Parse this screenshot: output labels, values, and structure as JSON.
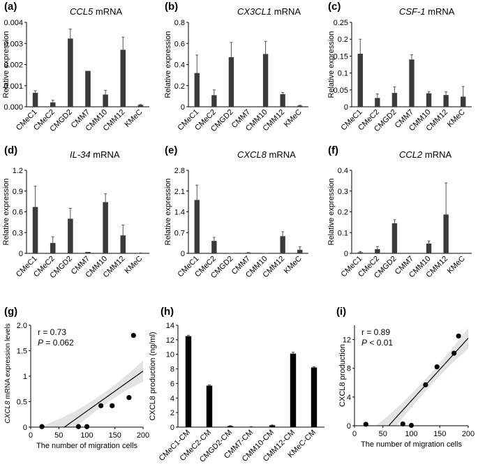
{
  "chart_data": [
    {
      "panel": "(a)",
      "type": "bar",
      "title_gene": "CCL5",
      "title_suffix": " mRNA",
      "ylabel": "Relative expression",
      "categories": [
        "CMeC1",
        "CMeC2",
        "CMGD2",
        "CMM7",
        "CMM10",
        "CMM12",
        "KMeC"
      ],
      "values": [
        0.00066,
        0.00021,
        0.00323,
        0.0017,
        0.00058,
        0.0027,
        9e-05
      ],
      "errors": [
        0.0001,
        0.0001,
        0.00045,
        0.0,
        0.0002,
        0.0006,
        2e-05
      ],
      "ylim": [
        0,
        0.004
      ],
      "yticks": [
        "0.000",
        "0.001",
        "0.002",
        "0.003",
        "0.004"
      ]
    },
    {
      "panel": "(b)",
      "type": "bar",
      "title_gene": "CX3CL1",
      "title_suffix": " mRNA",
      "ylabel": "Relative expression",
      "categories": [
        "CMeC1",
        "CMeC2",
        "CMGD2",
        "CMM7",
        "CMM10",
        "CMM12",
        "KMeC"
      ],
      "values": [
        0.32,
        0.11,
        0.47,
        0.0,
        0.5,
        0.12,
        0.01
      ],
      "errors": [
        0.17,
        0.05,
        0.14,
        0.0,
        0.12,
        0.015,
        0.005
      ],
      "ylim": [
        0,
        0.8
      ],
      "yticks": [
        "0",
        "0.2",
        "0.4",
        "0.6",
        "0.8"
      ]
    },
    {
      "panel": "(c)",
      "type": "bar",
      "title_gene": "CSF-1",
      "title_suffix": " mRNA",
      "ylabel": "Relative expression",
      "categories": [
        "CMeC1",
        "CMeC2",
        "CMGD2",
        "CMM7",
        "CMM10",
        "CMM12",
        "KMeC"
      ],
      "values": [
        0.157,
        0.026,
        0.041,
        0.14,
        0.04,
        0.035,
        0.03
      ],
      "errors": [
        0.043,
        0.012,
        0.018,
        0.014,
        0.005,
        0.009,
        0.03
      ],
      "ylim": [
        0,
        0.25
      ],
      "yticks": [
        "0",
        "0.05",
        "0.1",
        "0.15",
        "0.2",
        "0.25"
      ]
    },
    {
      "panel": "(d)",
      "type": "bar",
      "title_gene": "IL-34",
      "title_suffix": " mRNA",
      "ylabel": "Relative expression",
      "categories": [
        "CMeC1",
        "CMeC2",
        "CMGD2",
        "CMM7",
        "CMM10",
        "CMM12",
        "KMeC"
      ],
      "values": [
        0.67,
        0.15,
        0.5,
        0.02,
        0.74,
        0.26,
        0.005
      ],
      "errors": [
        0.3,
        0.09,
        0.15,
        0.0,
        0.12,
        0.15,
        0.002
      ],
      "ylim": [
        0,
        1.2
      ],
      "yticks": [
        "0",
        "0.3",
        "0.6",
        "0.9",
        "1.2"
      ]
    },
    {
      "panel": "(e)",
      "type": "bar",
      "title_gene": "CXCL8",
      "title_suffix": " mRNA",
      "ylabel": "Relative expression",
      "categories": [
        "CMeC1",
        "CMeC2",
        "CMGD2",
        "CMM7",
        "CMM10",
        "CMM12",
        "KMeC"
      ],
      "values": [
        1.8,
        0.42,
        0.01,
        0.02,
        0.01,
        0.58,
        0.12
      ],
      "errors": [
        0.5,
        0.12,
        0.0,
        0.01,
        0.0,
        0.15,
        0.1
      ],
      "ylim": [
        0,
        2.8
      ],
      "yticks": [
        "0",
        "0.7",
        "1.4",
        "2.1",
        "2.8"
      ]
    },
    {
      "panel": "(f)",
      "type": "bar",
      "title_gene": "CCL2",
      "title_suffix": " mRNA",
      "ylabel": "Relative expression",
      "categories": [
        "CMeC1",
        "CMeC2",
        "CMGD2",
        "CMM7",
        "CMM10",
        "CMM12",
        "KMeC"
      ],
      "values": [
        0.005,
        0.02,
        0.145,
        0.0,
        0.047,
        0.187,
        0.0
      ],
      "errors": [
        0.004,
        0.013,
        0.017,
        0.0,
        0.013,
        0.152,
        0.0
      ],
      "ylim": [
        0,
        0.4
      ],
      "yticks": [
        "0",
        "0.1",
        "0.2",
        "0.3",
        "0.4"
      ]
    },
    {
      "panel": "(g)",
      "type": "scatter",
      "xlabel": "The number of migration cells",
      "ylabel_gene": "CXCL8",
      "ylabel_suffix": " mRNA expression levels",
      "points_x": [
        20,
        85,
        100,
        125,
        145,
        175,
        183
      ],
      "points_y": [
        0.01,
        0.01,
        0.01,
        0.42,
        0.42,
        0.58,
        1.8
      ],
      "fit_line": [
        [
          60,
          0
        ],
        [
          200,
          1.1
        ]
      ],
      "xlim": [
        0,
        200
      ],
      "ylim": [
        0,
        2
      ],
      "xticks": [
        "0",
        "50",
        "100",
        "150",
        "200"
      ],
      "yticks": [
        "0",
        "0.5",
        "1",
        "1.5",
        "2.0"
      ],
      "stat_r": "r = 0.73",
      "stat_p_symbol": "P",
      "stat_p_value": " = 0.062"
    },
    {
      "panel": "(h)",
      "type": "bar",
      "ylabel": "CXCL8 production (ng/ml)",
      "categories": [
        "CMeC1-CM",
        "CMeC2-CM",
        "CMGD2-CM",
        "CMM7-CM",
        "CMM10-CM",
        "CMM12-CM",
        "KMeC-CM"
      ],
      "values": [
        12.5,
        5.7,
        0.15,
        0.05,
        0.25,
        10.1,
        8.2
      ],
      "errors": [
        0.12,
        0.1,
        0.05,
        0.03,
        0.05,
        0.2,
        0.1
      ],
      "ylim": [
        0,
        14
      ],
      "yticks": [
        "0",
        "2",
        "4",
        "6",
        "8",
        "10",
        "12",
        "14"
      ]
    },
    {
      "panel": "(i)",
      "type": "scatter",
      "xlabel": "The number of migration cells",
      "ylabel": "CXCL8 production",
      "points_x": [
        20,
        85,
        100,
        125,
        145,
        175,
        183
      ],
      "points_y": [
        0.2,
        0.25,
        0.05,
        5.7,
        8.2,
        10.1,
        12.5
      ],
      "fit_line": [
        [
          60,
          0
        ],
        [
          200,
          12.2
        ]
      ],
      "xlim": [
        0,
        200
      ],
      "ylim": [
        0,
        14
      ],
      "xticks": [
        "0",
        "50",
        "100",
        "150",
        "200"
      ],
      "yticks": [
        "0",
        "4",
        "8",
        "12"
      ],
      "stat_r": "r = 0.89",
      "stat_p_symbol": "P",
      "stat_p_value": " < 0.01"
    }
  ]
}
